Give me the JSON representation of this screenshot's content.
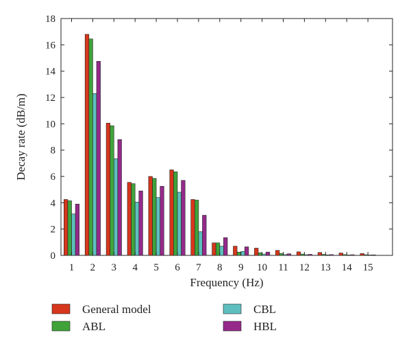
{
  "chart_data": {
    "type": "bar",
    "title": "",
    "xlabel": "Frequency (Hz)",
    "ylabel": "Decay rate (dB/m)",
    "ylim": [
      0,
      18
    ],
    "yticks": [
      0,
      2,
      4,
      6,
      8,
      10,
      12,
      14,
      16,
      18
    ],
    "categories": [
      "1",
      "2",
      "3",
      "4",
      "5",
      "6",
      "7",
      "8",
      "9",
      "10",
      "11",
      "12",
      "13",
      "14",
      "15"
    ],
    "grid": false,
    "legend_position": "bottom",
    "series": [
      {
        "name": "General model",
        "color": "#d7371c",
        "values": [
          4.25,
          16.8,
          10.05,
          5.55,
          6.0,
          6.5,
          4.25,
          0.95,
          0.7,
          0.55,
          0.38,
          0.27,
          0.22,
          0.18,
          0.14
        ]
      },
      {
        "name": "ABL",
        "color": "#3fa33a",
        "values": [
          4.15,
          16.45,
          9.85,
          5.45,
          5.85,
          6.35,
          4.2,
          0.95,
          0.25,
          0.2,
          0.15,
          0.1,
          0.08,
          0.06,
          0.05
        ]
      },
      {
        "name": "CBL",
        "color": "#5fbfbf",
        "values": [
          3.15,
          12.3,
          7.35,
          4.05,
          4.4,
          4.8,
          1.8,
          0.7,
          0.3,
          0.1,
          0.06,
          0.05,
          0.04,
          0.03,
          0.03
        ]
      },
      {
        "name": "HBL",
        "color": "#952a8a",
        "values": [
          3.9,
          14.75,
          8.8,
          4.9,
          5.25,
          5.7,
          3.05,
          1.35,
          0.65,
          0.25,
          0.12,
          0.08,
          0.06,
          0.05,
          0.04
        ]
      }
    ]
  }
}
